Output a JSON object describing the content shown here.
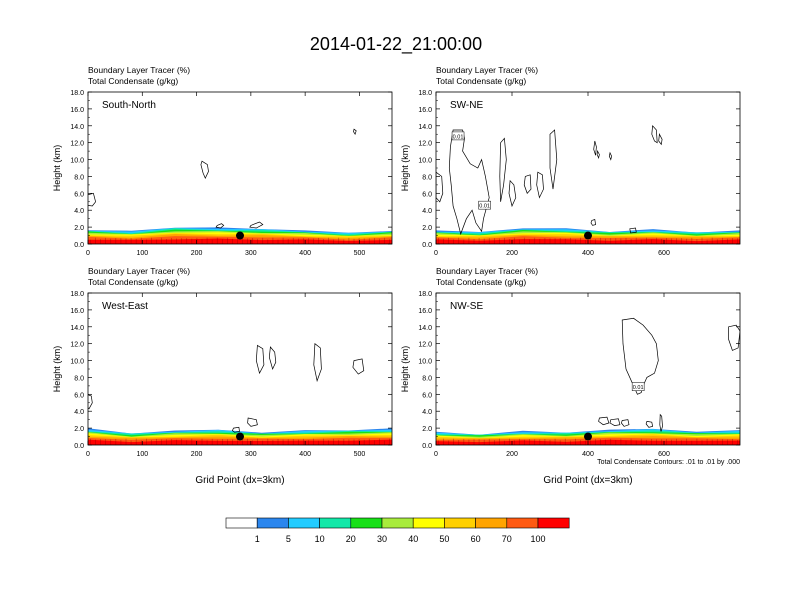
{
  "figure": {
    "title": "2014-01-22_21:00:00",
    "colorbar": {
      "colors": [
        "#ffffff",
        "#2b86ee",
        "#22ccff",
        "#12e8a8",
        "#18e018",
        "#a8ec3c",
        "#ffff00",
        "#ffd000",
        "#ffa400",
        "#ff5a12",
        "#ff0000"
      ],
      "labels": [
        "1",
        "5",
        "10",
        "20",
        "30",
        "40",
        "50",
        "60",
        "70",
        "100"
      ]
    },
    "contour_note": "Total Condensate Contours: .01 to .01 by .000"
  },
  "chart_data": [
    {
      "type": "heatmap",
      "title": "South-North",
      "subtitle_lines": [
        "Boundary Layer Tracer   (%)",
        "Total Condensate   (g/kg)"
      ],
      "xlabel": "",
      "ylabel": "Height (km)",
      "xlim": [
        0,
        560
      ],
      "ylim": [
        0,
        18
      ],
      "xticks": [
        "0",
        "100",
        "200",
        "300",
        "400",
        "500"
      ],
      "xtick_values": [
        0,
        100,
        200,
        300,
        400,
        500
      ],
      "yticks": [
        "0.0",
        "2.0",
        "4.0",
        "6.0",
        "8.0",
        "10.0",
        "12.0",
        "14.0",
        "16.0",
        "18.0"
      ],
      "marker": {
        "x": 280,
        "y": 1.0
      },
      "boundary_layer_top_km": [
        1.7,
        1.5,
        2.0,
        1.9,
        1.8,
        1.6,
        1.3,
        1.6
      ],
      "contours": [
        {
          "x": [
            -2,
            10,
            14,
            8,
            -2
          ],
          "y": [
            5.8,
            6.0,
            5.0,
            4.5,
            4.6
          ]
        },
        {
          "x": [
            210,
            220,
            222,
            216,
            212,
            208
          ],
          "y": [
            9.8,
            9.4,
            8.6,
            7.8,
            8.4,
            9.4
          ]
        },
        {
          "x": [
            490,
            494,
            492,
            489
          ],
          "y": [
            13.6,
            13.4,
            13.0,
            13.3
          ]
        },
        {
          "x": [
            238,
            246,
            250,
            244,
            236
          ],
          "y": [
            2.2,
            2.4,
            2.2,
            1.9,
            2.0
          ]
        },
        {
          "x": [
            300,
            316,
            322,
            310,
            298
          ],
          "y": [
            2.2,
            2.6,
            2.3,
            1.9,
            2.0
          ]
        }
      ]
    },
    {
      "type": "heatmap",
      "title": "SW-NE",
      "subtitle_lines": [
        "Boundary Layer Tracer   (%)",
        "Total Condensate   (g/kg)"
      ],
      "xlabel": "",
      "ylabel": "Height (km)",
      "xlim": [
        0,
        800
      ],
      "ylim": [
        0,
        18
      ],
      "xticks": [
        "0",
        "200",
        "400",
        "600"
      ],
      "xtick_values": [
        0,
        200,
        400,
        600
      ],
      "yticks": [
        "0.0",
        "2.0",
        "4.0",
        "6.0",
        "8.0",
        "10.0",
        "12.0",
        "14.0",
        "16.0",
        "18.0"
      ],
      "marker": {
        "x": 400,
        "y": 1.0
      },
      "boundary_layer_top_km": [
        1.6,
        1.4,
        1.9,
        1.8,
        1.5,
        1.7,
        1.4,
        1.6
      ],
      "contour_labels": [
        {
          "text": "0.01",
          "x": 58,
          "y": 12.8
        },
        {
          "text": "0.01",
          "x": 128,
          "y": 4.6
        }
      ],
      "contours": [
        {
          "x": [
            45,
            70,
            75,
            70,
            90,
            110,
            120,
            130,
            140,
            125,
            120,
            105,
            95,
            80,
            65,
            55,
            45,
            40,
            35,
            38,
            45
          ],
          "y": [
            13.5,
            13.5,
            12.5,
            11.0,
            9.5,
            9.0,
            10.0,
            8.0,
            5.5,
            3.0,
            1.5,
            2.5,
            4.0,
            3.0,
            1.2,
            3.0,
            4.5,
            7.0,
            9.0,
            11.5,
            13.5
          ]
        },
        {
          "x": [
            0,
            15,
            18,
            10,
            0
          ],
          "y": [
            8.5,
            8.0,
            6.0,
            5.0,
            5.5
          ]
        },
        {
          "x": [
            170,
            180,
            185,
            178,
            170,
            168
          ],
          "y": [
            12.0,
            12.5,
            10.0,
            7.0,
            5.0,
            8.0
          ]
        },
        {
          "x": [
            195,
            205,
            210,
            200,
            192
          ],
          "y": [
            7.5,
            7.0,
            5.5,
            4.5,
            6.0
          ]
        },
        {
          "x": [
            235,
            248,
            250,
            240,
            232
          ],
          "y": [
            8.0,
            8.2,
            6.5,
            6.0,
            7.0
          ]
        },
        {
          "x": [
            268,
            280,
            283,
            272,
            265
          ],
          "y": [
            8.5,
            8.2,
            6.5,
            5.5,
            7.0
          ]
        },
        {
          "x": [
            300,
            312,
            318,
            308,
            300
          ],
          "y": [
            13.0,
            13.5,
            10.0,
            6.5,
            9.0
          ]
        },
        {
          "x": [
            418,
            422,
            420,
            415
          ],
          "y": [
            12.2,
            11.5,
            10.5,
            11.2
          ]
        },
        {
          "x": [
            425,
            430,
            428,
            424
          ],
          "y": [
            11.0,
            10.6,
            10.2,
            10.6
          ]
        },
        {
          "x": [
            458,
            462,
            460,
            456
          ],
          "y": [
            10.8,
            10.4,
            10.0,
            10.4
          ]
        },
        {
          "x": [
            570,
            580,
            582,
            575,
            568
          ],
          "y": [
            14.0,
            13.5,
            12.0,
            12.2,
            13.0
          ]
        },
        {
          "x": [
            588,
            595,
            593,
            586
          ],
          "y": [
            13.0,
            12.4,
            11.8,
            12.2
          ]
        },
        {
          "x": [
            410,
            418,
            420,
            412,
            408
          ],
          "y": [
            2.8,
            2.9,
            2.3,
            2.2,
            2.5
          ]
        },
        {
          "x": [
            510,
            525,
            527,
            512
          ],
          "y": [
            1.8,
            1.9,
            1.4,
            1.3
          ]
        }
      ]
    },
    {
      "type": "heatmap",
      "title": "West-East",
      "subtitle_lines": [
        "Boundary Layer Tracer   (%)",
        "Total Condensate   (g/kg)"
      ],
      "xlabel": "Grid Point (dx=3km)",
      "ylabel": "Height (km)",
      "xlim": [
        0,
        560
      ],
      "ylim": [
        0,
        18
      ],
      "xticks": [
        "0",
        "100",
        "200",
        "300",
        "400",
        "500"
      ],
      "xtick_values": [
        0,
        100,
        200,
        300,
        400,
        500
      ],
      "yticks": [
        "0.0",
        "2.0",
        "4.0",
        "6.0",
        "8.0",
        "10.0",
        "12.0",
        "14.0",
        "16.0",
        "18.0"
      ],
      "marker": {
        "x": 280,
        "y": 1.0
      },
      "boundary_layer_top_km": [
        1.9,
        1.4,
        1.7,
        1.8,
        1.5,
        1.7,
        1.8,
        1.9
      ],
      "contours": [
        {
          "x": [
            -2,
            6,
            8,
            2,
            -2
          ],
          "y": [
            6.0,
            5.8,
            5.0,
            4.3,
            4.5
          ]
        },
        {
          "x": [
            312,
            322,
            324,
            316,
            310
          ],
          "y": [
            11.8,
            11.4,
            9.5,
            8.5,
            10.0
          ]
        },
        {
          "x": [
            336,
            344,
            346,
            340,
            334
          ],
          "y": [
            11.6,
            11.0,
            9.8,
            9.0,
            10.4
          ]
        },
        {
          "x": [
            418,
            428,
            430,
            422,
            416
          ],
          "y": [
            12.0,
            11.5,
            9.0,
            7.6,
            9.5
          ]
        },
        {
          "x": [
            490,
            505,
            508,
            498,
            488
          ],
          "y": [
            10.0,
            10.2,
            8.8,
            8.4,
            9.2
          ]
        },
        {
          "x": [
            295,
            310,
            312,
            300,
            294
          ],
          "y": [
            3.2,
            3.0,
            2.4,
            2.2,
            2.6
          ]
        },
        {
          "x": [
            268,
            278,
            279,
            270,
            266
          ],
          "y": [
            2.0,
            2.1,
            1.6,
            1.5,
            1.7
          ]
        }
      ]
    },
    {
      "type": "heatmap",
      "title": "NW-SE",
      "subtitle_lines": [
        "Boundary Layer Tracer   (%)",
        "Total Condensate   (g/kg)"
      ],
      "xlabel": "Grid Point (dx=3km)",
      "ylabel": "Height (km)",
      "xlim": [
        0,
        800
      ],
      "ylim": [
        0,
        18
      ],
      "xticks": [
        "0",
        "200",
        "400",
        "600"
      ],
      "xtick_values": [
        0,
        200,
        400,
        600
      ],
      "yticks": [
        "0.0",
        "2.0",
        "4.0",
        "6.0",
        "8.0",
        "10.0",
        "12.0",
        "14.0",
        "16.0",
        "18.0"
      ],
      "marker": {
        "x": 400,
        "y": 1.0
      },
      "boundary_layer_top_km": [
        1.5,
        1.3,
        1.6,
        1.5,
        1.8,
        1.9,
        1.6,
        1.7
      ],
      "contour_labels": [
        {
          "text": "0.01",
          "x": 532,
          "y": 6.9
        }
      ],
      "contours": [
        {
          "x": [
            490,
            520,
            545,
            568,
            580,
            585,
            575,
            555,
            545,
            540,
            530,
            515,
            500,
            492,
            490
          ],
          "y": [
            14.8,
            15.0,
            14.2,
            13.0,
            12.0,
            10.0,
            8.5,
            8.0,
            7.0,
            6.2,
            6.0,
            7.5,
            9.0,
            12.0,
            14.8
          ]
        },
        {
          "x": [
            770,
            790,
            800,
            795,
            780,
            770
          ],
          "y": [
            14.0,
            14.2,
            13.5,
            11.5,
            11.2,
            12.5
          ]
        },
        {
          "x": [
            430,
            450,
            455,
            440,
            428
          ],
          "y": [
            3.2,
            3.3,
            2.6,
            2.4,
            2.8
          ]
        },
        {
          "x": [
            460,
            480,
            484,
            470,
            458
          ],
          "y": [
            3.0,
            3.1,
            2.4,
            2.3,
            2.6
          ]
        },
        {
          "x": [
            490,
            505,
            508,
            495,
            488
          ],
          "y": [
            2.9,
            3.0,
            2.4,
            2.2,
            2.6
          ]
        },
        {
          "x": [
            555,
            568,
            570,
            560,
            553
          ],
          "y": [
            2.8,
            2.7,
            2.2,
            2.1,
            2.5
          ]
        },
        {
          "x": [
            590,
            594,
            596,
            592,
            589
          ],
          "y": [
            3.6,
            3.4,
            2.2,
            1.6,
            2.4
          ]
        }
      ]
    }
  ]
}
